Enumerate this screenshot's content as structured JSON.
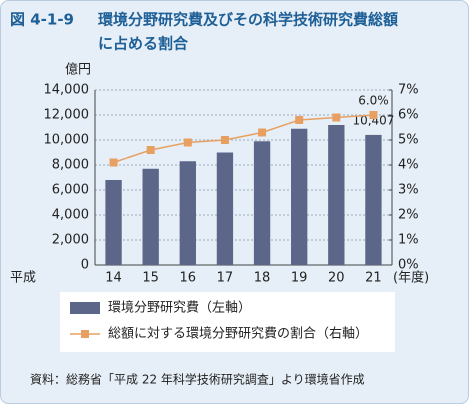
{
  "chart_data": {
    "type": "bar",
    "figure_label": "図 4-1-9",
    "title_lines": [
      "環境分野研究費及びその科学技術研究費総額",
      "に占める割合"
    ],
    "y_unit": "億円",
    "x_prefix": "平成",
    "x_suffix": "(年度)",
    "categories": [
      "14",
      "15",
      "16",
      "17",
      "18",
      "19",
      "20",
      "21"
    ],
    "series": [
      {
        "name": "環境分野研究費（左軸）",
        "type": "bar",
        "color": "#5b6689",
        "values": [
          6800,
          7700,
          8300,
          9000,
          9900,
          10900,
          11200,
          10407
        ],
        "value_labels": [
          null,
          null,
          null,
          null,
          null,
          null,
          null,
          "10,407"
        ]
      },
      {
        "name": "総額に対する環境分野研究費の割合（右軸）",
        "type": "line",
        "axis": "y2",
        "color": "#e8a062",
        "values": [
          4.1,
          4.6,
          4.9,
          5.0,
          5.3,
          5.8,
          5.9,
          6.0
        ],
        "value_labels": [
          null,
          null,
          null,
          null,
          null,
          null,
          null,
          "6.0%"
        ]
      }
    ],
    "ylim": [
      0,
      14000
    ],
    "yticks": [
      0,
      {
        "value": 2000,
        "label": "2,000"
      },
      {
        "value": 4000,
        "label": "4,000"
      },
      {
        "value": 6000,
        "label": "6,000"
      },
      {
        "value": 8000,
        "label": "8,000"
      },
      {
        "value": 10000,
        "label": "10,000"
      },
      {
        "value": 12000,
        "label": "12,000"
      },
      {
        "value": 14000,
        "label": "14,000"
      }
    ],
    "y2lim": [
      0,
      7
    ],
    "y2ticks": [
      {
        "value": 0,
        "label": "0%"
      },
      {
        "value": 1,
        "label": "1%"
      },
      {
        "value": 2,
        "label": "2%"
      },
      {
        "value": 3,
        "label": "3%"
      },
      {
        "value": 4,
        "label": "4%"
      },
      {
        "value": 5,
        "label": "5%"
      },
      {
        "value": 6,
        "label": "6%"
      },
      {
        "value": 7,
        "label": "7%"
      }
    ],
    "grid": true,
    "source": "資料：総務省「平成 22 年科学技術研究調査」より環境省作成"
  }
}
